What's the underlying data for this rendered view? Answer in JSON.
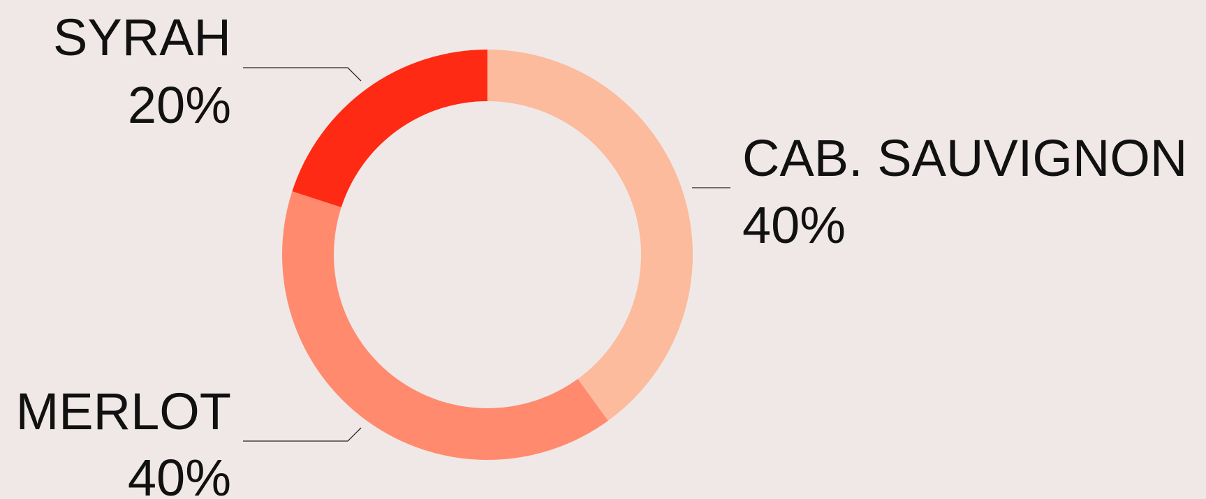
{
  "chart_data": {
    "type": "donut",
    "categories": [
      "CAB. SAUVIGNON",
      "MERLOT",
      "SYRAH"
    ],
    "values": [
      40,
      40,
      20
    ],
    "value_labels": [
      "40%",
      "40%",
      "20%"
    ],
    "colors": [
      "#fbbb9c",
      "#ff8a6e",
      "#ff2a14"
    ]
  }
}
